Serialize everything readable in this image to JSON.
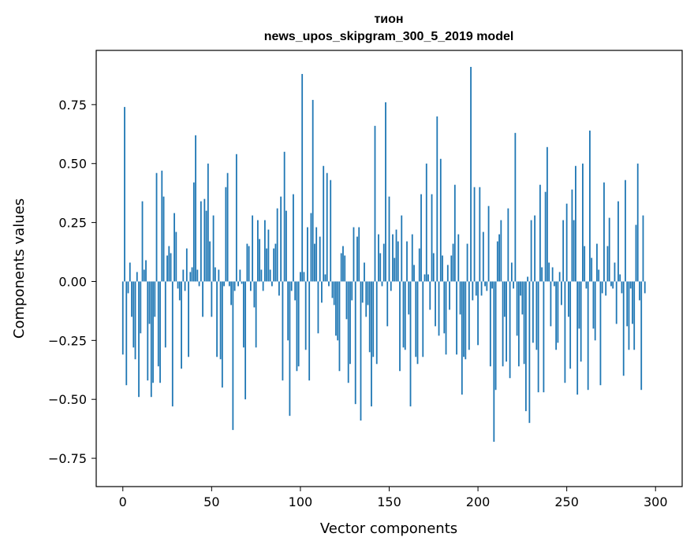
{
  "chart_data": {
    "type": "bar",
    "title": "тион",
    "subtitle": "news_upos_skipgram_300_5_2019 model",
    "xlabel": "Vector components",
    "ylabel": "Components values",
    "xlim": [
      -15,
      315
    ],
    "ylim": [
      -0.87,
      0.98
    ],
    "xticks": [
      0,
      50,
      100,
      150,
      200,
      250,
      300
    ],
    "yticks": [
      -0.75,
      -0.5,
      -0.25,
      0.0,
      0.25,
      0.5,
      0.75
    ],
    "xtick_labels": [
      "0",
      "50",
      "100",
      "150",
      "200",
      "250",
      "300"
    ],
    "ytick_labels": [
      "−0.75",
      "−0.50",
      "−0.25",
      "0.00",
      "0.25",
      "0.50",
      "0.75"
    ],
    "bar_color": "#1f77b4",
    "grid": false,
    "legend": "none",
    "values": [
      -0.31,
      0.74,
      -0.44,
      -0.05,
      0.08,
      -0.15,
      -0.28,
      -0.33,
      0.04,
      -0.49,
      -0.22,
      0.34,
      0.05,
      0.09,
      -0.42,
      -0.18,
      -0.49,
      -0.43,
      -0.15,
      0.46,
      -0.36,
      -0.43,
      0.47,
      0.36,
      -0.28,
      0.11,
      0.15,
      0.12,
      -0.53,
      0.29,
      0.21,
      -0.03,
      -0.08,
      -0.37,
      0.05,
      -0.04,
      0.14,
      -0.32,
      0.04,
      0.06,
      0.42,
      0.62,
      0.05,
      -0.02,
      0.34,
      -0.15,
      0.35,
      0.3,
      0.5,
      0.17,
      -0.15,
      0.28,
      0.06,
      -0.32,
      0.05,
      -0.33,
      -0.45,
      -0.02,
      0.4,
      0.46,
      -0.02,
      -0.1,
      -0.63,
      -0.04,
      0.54,
      -0.02,
      0.05,
      -0.01,
      -0.28,
      -0.5,
      0.16,
      0.15,
      -0.04,
      0.28,
      -0.11,
      -0.28,
      0.26,
      0.18,
      0.05,
      -0.04,
      0.26,
      0.14,
      0.22,
      0.05,
      -0.02,
      0.14,
      0.16,
      0.31,
      -0.06,
      0.36,
      -0.42,
      0.55,
      0.3,
      -0.25,
      -0.57,
      -0.04,
      0.37,
      -0.08,
      -0.38,
      -0.36,
      0.04,
      0.88,
      0.04,
      -0.29,
      0.23,
      -0.42,
      0.29,
      0.77,
      0.16,
      0.23,
      -0.22,
      0.19,
      -0.09,
      0.49,
      0.03,
      0.46,
      -0.02,
      0.43,
      -0.07,
      -0.1,
      -0.23,
      -0.25,
      -0.38,
      0.12,
      0.15,
      0.11,
      -0.16,
      -0.43,
      -0.35,
      -0.08,
      0.23,
      -0.52,
      0.19,
      0.23,
      -0.59,
      -0.09,
      0.08,
      -0.15,
      -0.1,
      -0.3,
      -0.53,
      -0.32,
      0.66,
      -0.35,
      0.2,
      0.12,
      -0.02,
      0.16,
      0.76,
      -0.19,
      0.36,
      -0.04,
      0.2,
      0.1,
      0.22,
      0.17,
      -0.38,
      0.28,
      -0.28,
      -0.29,
      0.17,
      -0.14,
      -0.53,
      0.2,
      0.07,
      -0.32,
      -0.35,
      0.14,
      0.37,
      -0.32,
      0.03,
      0.5,
      0.03,
      -0.12,
      0.37,
      0.12,
      -0.19,
      0.7,
      -0.23,
      0.52,
      0.11,
      -0.22,
      -0.31,
      0.07,
      -0.12,
      0.11,
      0.16,
      0.41,
      -0.31,
      0.2,
      -0.14,
      -0.48,
      -0.32,
      -0.33,
      0.16,
      -0.29,
      0.91,
      -0.08,
      0.4,
      -0.06,
      -0.27,
      0.4,
      -0.06,
      0.21,
      -0.02,
      -0.04,
      0.32,
      -0.36,
      -0.03,
      -0.68,
      -0.46,
      0.17,
      0.2,
      0.26,
      -0.36,
      -0.15,
      -0.34,
      0.31,
      -0.41,
      0.08,
      -0.03,
      0.63,
      -0.23,
      -0.36,
      -0.06,
      -0.14,
      -0.35,
      -0.55,
      0.02,
      -0.6,
      0.26,
      -0.26,
      0.28,
      -0.29,
      -0.47,
      0.41,
      0.06,
      -0.47,
      0.38,
      0.57,
      0.08,
      -0.19,
      0.06,
      -0.02,
      -0.29,
      -0.26,
      0.04,
      -0.1,
      0.26,
      -0.43,
      0.33,
      -0.15,
      -0.37,
      0.39,
      0.26,
      0.49,
      -0.48,
      -0.2,
      -0.34,
      0.5,
      0.15,
      -0.03,
      -0.46,
      0.64,
      0.1,
      -0.2,
      -0.25,
      0.16,
      0.05,
      -0.44,
      -0.05,
      0.42,
      -0.06,
      0.15,
      0.27,
      -0.02,
      -0.03,
      0.08,
      -0.18,
      0.34,
      0.03,
      -0.05,
      -0.4,
      0.43,
      -0.19,
      -0.29,
      -0.03,
      -0.18,
      -0.29,
      0.24,
      0.5,
      -0.08,
      -0.46,
      0.28,
      -0.05
    ]
  }
}
